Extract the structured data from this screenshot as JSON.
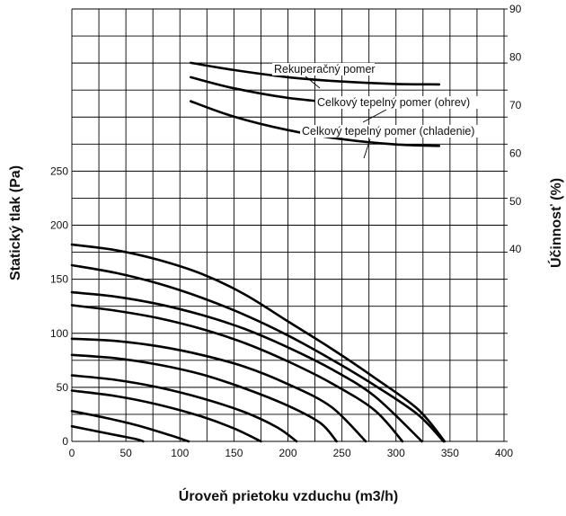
{
  "chart_data": {
    "type": "line",
    "xlabel": "Úroveň prietoku vzduchu (m3/h)",
    "ylabel_left": "Statický tlak (Pa)",
    "ylabel_right": "Účinnosť (%)",
    "xlim": [
      0,
      400
    ],
    "ylim_left": [
      0,
      400
    ],
    "ylim_right": [
      0,
      90
    ],
    "grid": true,
    "x_ticks": [
      "0",
      "50",
      "100",
      "150",
      "200",
      "250",
      "300",
      "350",
      "400"
    ],
    "y_left_ticks": [
      "0",
      "50",
      "100",
      "150",
      "200",
      "250"
    ],
    "y_right_ticks": [
      "40",
      "50",
      "60",
      "70",
      "80",
      "90"
    ],
    "pressure_curves": [
      {
        "x": [
          0,
          20,
          40,
          60,
          66
        ],
        "y": [
          14,
          10,
          6,
          2,
          0
        ]
      },
      {
        "x": [
          0,
          30,
          60,
          90,
          108
        ],
        "y": [
          28,
          22,
          15,
          6,
          0
        ]
      },
      {
        "x": [
          0,
          40,
          80,
          120,
          150,
          175
        ],
        "y": [
          47,
          42,
          34,
          23,
          12,
          0
        ]
      },
      {
        "x": [
          0,
          40,
          80,
          120,
          160,
          190,
          208
        ],
        "y": [
          61,
          57,
          50,
          40,
          27,
          13,
          0
        ]
      },
      {
        "x": [
          0,
          40,
          80,
          120,
          160,
          200,
          230,
          245
        ],
        "y": [
          80,
          77,
          71,
          62,
          49,
          33,
          17,
          0
        ]
      },
      {
        "x": [
          0,
          40,
          80,
          120,
          160,
          200,
          240,
          272
        ],
        "y": [
          95,
          93,
          88,
          80,
          69,
          53,
          32,
          0
        ]
      },
      {
        "x": [
          0,
          40,
          80,
          120,
          160,
          200,
          240,
          280,
          306
        ],
        "y": [
          126,
          121,
          114,
          104,
          91,
          74,
          54,
          29,
          0
        ]
      },
      {
        "x": [
          0,
          40,
          80,
          120,
          160,
          200,
          240,
          280,
          324
        ],
        "y": [
          138,
          134,
          127,
          117,
          104,
          87,
          67,
          42,
          0
        ]
      },
      {
        "x": [
          0,
          40,
          80,
          120,
          160,
          200,
          240,
          280,
          320,
          344
        ],
        "y": [
          163,
          156,
          146,
          133,
          117,
          98,
          76,
          52,
          25,
          0
        ]
      },
      {
        "x": [
          0,
          40,
          80,
          120,
          160,
          200,
          240,
          280,
          320,
          345
        ],
        "y": [
          182,
          177,
          168,
          155,
          136,
          111,
          86,
          59,
          30,
          0
        ]
      }
    ],
    "efficiency_curves": [
      {
        "name": "Rekuperačný pomer",
        "x": [
          110,
          150,
          200,
          250,
          300,
          340
        ],
        "y": [
          78.8,
          77.3,
          75.8,
          74.9,
          74.4,
          74.3
        ]
      },
      {
        "name": "Celkový tepelný pomer (ohrev)",
        "x": [
          110,
          150,
          200,
          250,
          300,
          340
        ],
        "y": [
          75.8,
          73.5,
          71.5,
          70.4,
          69.7,
          69.5
        ]
      },
      {
        "name": "Celkový tepelný pomer (chladenie)",
        "x": [
          110,
          150,
          200,
          250,
          300,
          340
        ],
        "y": [
          70.8,
          67.6,
          64.8,
          62.9,
          61.8,
          61.5
        ]
      }
    ]
  }
}
